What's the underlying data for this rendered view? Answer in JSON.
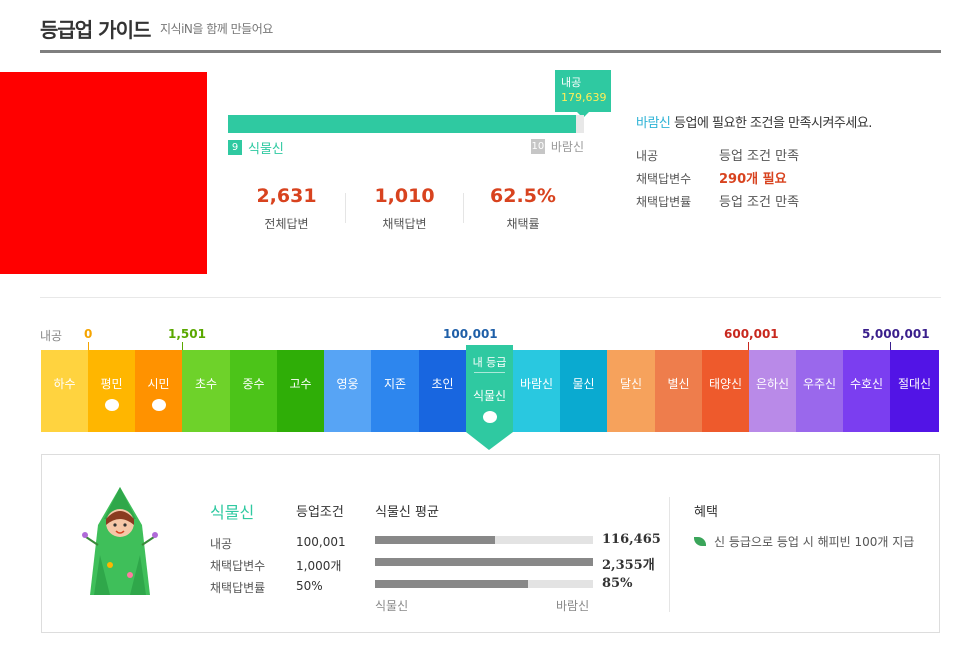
{
  "header": {
    "title": "등급업 가이드",
    "subtitle": "지식iN을 함께 만들어요"
  },
  "progress": {
    "tooltip_label": "내공",
    "tooltip_value": "179,639",
    "fill_fraction": 0.9775,
    "current_level_num": "9",
    "current_level_name": "식물신",
    "next_level_num": "10",
    "next_level_name": "바람신"
  },
  "stats": [
    {
      "value": "2,631",
      "label": "전체답변"
    },
    {
      "value": "1,010",
      "label": "채택답변"
    },
    {
      "value": "62.5%",
      "label": "채택률"
    }
  ],
  "condition": {
    "target": "바람신",
    "message": " 등업에 필요한 조건을 만족시켜주세요.",
    "rows": [
      {
        "key": "내공",
        "value": "등업 조건 만족",
        "need": false
      },
      {
        "key": "채택답변수",
        "value": "290개 필요",
        "need": true
      },
      {
        "key": "채택답변률",
        "value": "등업 조건 만족",
        "need": false
      }
    ]
  },
  "scale_labels": [
    {
      "text": "내공",
      "color": "#888888"
    },
    {
      "text": "0",
      "color": "#f5a400"
    },
    {
      "text": "1,501",
      "color": "#5aa800"
    },
    {
      "text": "100,001",
      "color": "#1f5fa8"
    },
    {
      "text": "600,001",
      "color": "#c8281e"
    },
    {
      "text": "5,000,001",
      "color": "#3a1f8c"
    }
  ],
  "levels": [
    {
      "name": "하수",
      "color": "#ffd33f",
      "egg": false
    },
    {
      "name": "평민",
      "color": "#ffb600",
      "egg": true
    },
    {
      "name": "시민",
      "color": "#ff9200",
      "egg": true
    },
    {
      "name": "초수",
      "color": "#6ed22a",
      "egg": false
    },
    {
      "name": "중수",
      "color": "#4cc419",
      "egg": false
    },
    {
      "name": "고수",
      "color": "#2fae07",
      "egg": false
    },
    {
      "name": "영웅",
      "color": "#57a4f5",
      "egg": false
    },
    {
      "name": "지존",
      "color": "#2d86ee",
      "egg": false
    },
    {
      "name": "초인",
      "color": "#1866e0",
      "egg": false
    },
    {
      "name": "식물신",
      "color": "#2fc9a1",
      "egg": true
    },
    {
      "name": "바람신",
      "color": "#29c8e0",
      "egg": false
    },
    {
      "name": "물신",
      "color": "#0aaad0",
      "egg": false
    },
    {
      "name": "달신",
      "color": "#f6a25c",
      "egg": false
    },
    {
      "name": "별신",
      "color": "#ee7d4c",
      "egg": false
    },
    {
      "name": "태양신",
      "color": "#ee5a2c",
      "egg": false
    },
    {
      "name": "은하신",
      "color": "#b98ae8",
      "egg": false
    },
    {
      "name": "우주신",
      "color": "#9a68ec",
      "egg": false
    },
    {
      "name": "수호신",
      "color": "#7b3ef0",
      "egg": false
    },
    {
      "name": "절대신",
      "color": "#5214e6",
      "egg": false
    }
  ],
  "my_level": {
    "tag": "내 등급",
    "name": "식물신"
  },
  "detail": {
    "name": "식물신",
    "cond_title": "등업조건",
    "avg_title": "식물신 평균",
    "rows": [
      {
        "key": "내공",
        "cond": "100,001",
        "avg": "116,465",
        "fill": 0.55
      },
      {
        "key": "채택답변수",
        "cond": "1,000개",
        "avg": "2,355개",
        "fill": 1.0
      },
      {
        "key": "채택답변률",
        "cond": "50%",
        "avg": "85%",
        "fill": 0.7
      }
    ],
    "axis_left": "식물신",
    "axis_right": "바람신",
    "benefit_title": "혜택",
    "benefit_text": "신 등급으로 등업 시 해피빈 100개 지급"
  }
}
